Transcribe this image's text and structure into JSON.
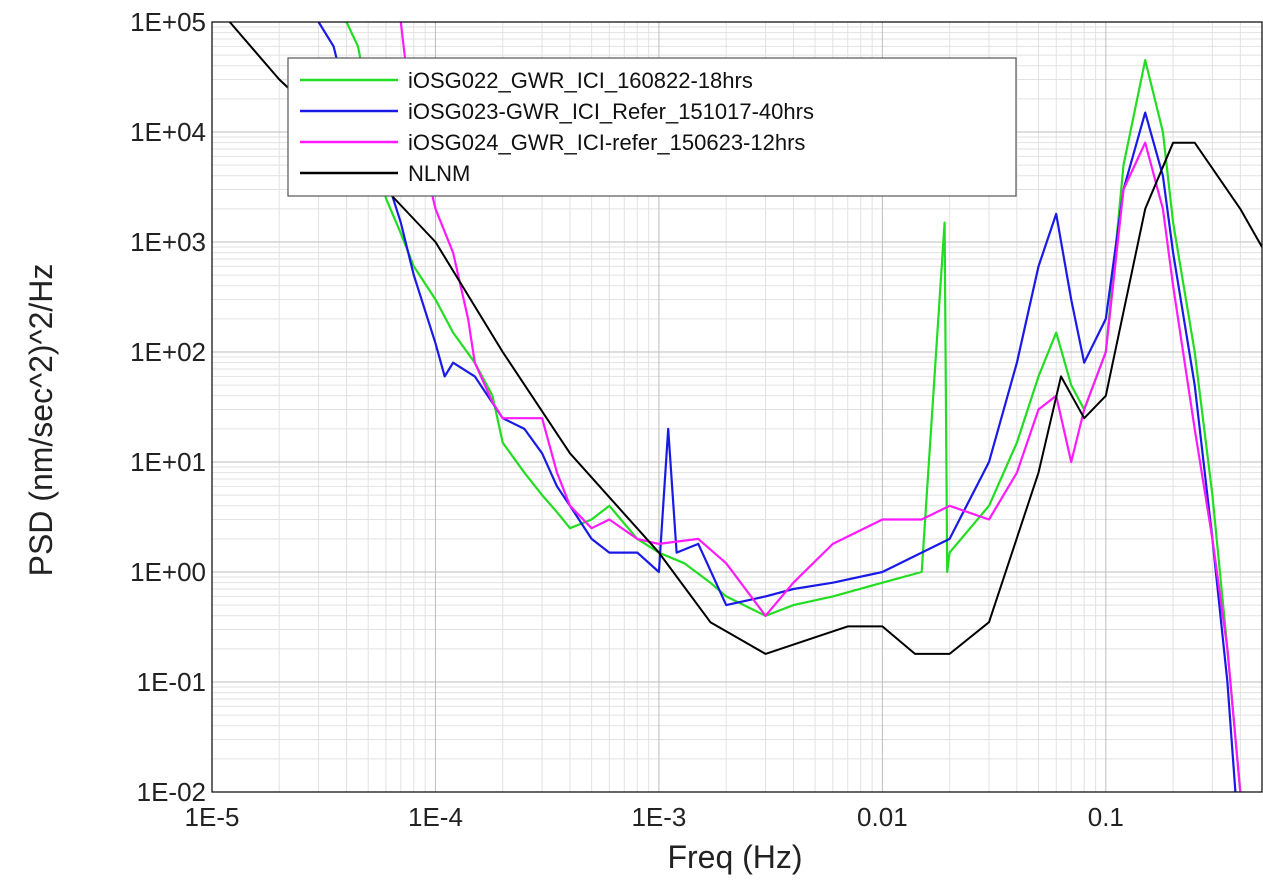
{
  "chart_data": {
    "type": "line",
    "title": "",
    "xlabel": "Freq (Hz)",
    "ylabel": "PSD (nm/sec^2)^2/Hz",
    "x_scale": "log",
    "y_scale": "log",
    "xlim": [
      1e-05,
      0.5
    ],
    "ylim": [
      0.01,
      100000
    ],
    "grid": true,
    "legend_position": "top-left",
    "x_ticks": [
      {
        "value": 1e-05,
        "label": "1E-5"
      },
      {
        "value": 0.0001,
        "label": "1E-4"
      },
      {
        "value": 0.001,
        "label": "1E-3"
      },
      {
        "value": 0.01,
        "label": "0.01"
      },
      {
        "value": 0.1,
        "label": "0.1"
      }
    ],
    "y_ticks": [
      {
        "value": 100000,
        "label": "1E+05"
      },
      {
        "value": 10000,
        "label": "1E+04"
      },
      {
        "value": 1000,
        "label": "1E+03"
      },
      {
        "value": 100,
        "label": "1E+02"
      },
      {
        "value": 10,
        "label": "1E+01"
      },
      {
        "value": 1,
        "label": "1E+00"
      },
      {
        "value": 0.1,
        "label": "1E-01"
      },
      {
        "value": 0.01,
        "label": "1E-02"
      }
    ],
    "series": [
      {
        "name": "iOSG022_GWR_ICI_160822-18hrs",
        "color": "#22dd22",
        "points": [
          [
            4e-05,
            100000
          ],
          [
            4.5e-05,
            60000
          ],
          [
            5e-05,
            20000
          ],
          [
            5.5e-05,
            8000
          ],
          [
            6e-05,
            2500
          ],
          [
            7e-05,
            1200
          ],
          [
            8e-05,
            600
          ],
          [
            0.0001,
            300
          ],
          [
            0.00012,
            150
          ],
          [
            0.00015,
            80
          ],
          [
            0.00018,
            40
          ],
          [
            0.0002,
            15
          ],
          [
            0.00025,
            8
          ],
          [
            0.0003,
            5
          ],
          [
            0.00035,
            3.5
          ],
          [
            0.0004,
            2.5
          ],
          [
            0.0005,
            3
          ],
          [
            0.0006,
            4
          ],
          [
            0.0008,
            2
          ],
          [
            0.001,
            1.5
          ],
          [
            0.0013,
            1.2
          ],
          [
            0.0017,
            0.8
          ],
          [
            0.002,
            0.6
          ],
          [
            0.003,
            0.4
          ],
          [
            0.004,
            0.5
          ],
          [
            0.006,
            0.6
          ],
          [
            0.01,
            0.8
          ],
          [
            0.015,
            1
          ],
          [
            0.019,
            1500
          ],
          [
            0.0195,
            1
          ],
          [
            0.02,
            1.5
          ],
          [
            0.03,
            4
          ],
          [
            0.04,
            15
          ],
          [
            0.05,
            60
          ],
          [
            0.06,
            150
          ],
          [
            0.07,
            50
          ],
          [
            0.08,
            30
          ],
          [
            0.1,
            100
          ],
          [
            0.12,
            5000
          ],
          [
            0.15,
            45000
          ],
          [
            0.18,
            10000
          ],
          [
            0.2,
            1500
          ],
          [
            0.25,
            100
          ],
          [
            0.3,
            5
          ],
          [
            0.35,
            0.2
          ],
          [
            0.4,
            0.01
          ]
        ]
      },
      {
        "name": "iOSG023-GWR_ICI_Refer_151017-40hrs",
        "color": "#1a1ae6",
        "points": [
          [
            3e-05,
            100000
          ],
          [
            3.5e-05,
            60000
          ],
          [
            4e-05,
            20000
          ],
          [
            5e-05,
            8000
          ],
          [
            6e-05,
            4000
          ],
          [
            7e-05,
            1500
          ],
          [
            8e-05,
            500
          ],
          [
            0.0001,
            120
          ],
          [
            0.00011,
            60
          ],
          [
            0.00012,
            80
          ],
          [
            0.00015,
            60
          ],
          [
            0.0002,
            25
          ],
          [
            0.00025,
            20
          ],
          [
            0.0003,
            12
          ],
          [
            0.00035,
            6
          ],
          [
            0.0004,
            4
          ],
          [
            0.0005,
            2
          ],
          [
            0.0006,
            1.5
          ],
          [
            0.0008,
            1.5
          ],
          [
            0.001,
            1
          ],
          [
            0.0011,
            20
          ],
          [
            0.0012,
            1.5
          ],
          [
            0.0015,
            1.8
          ],
          [
            0.002,
            0.5
          ],
          [
            0.003,
            0.6
          ],
          [
            0.004,
            0.7
          ],
          [
            0.006,
            0.8
          ],
          [
            0.01,
            1
          ],
          [
            0.015,
            1.5
          ],
          [
            0.02,
            2
          ],
          [
            0.03,
            10
          ],
          [
            0.04,
            80
          ],
          [
            0.05,
            600
          ],
          [
            0.06,
            1800
          ],
          [
            0.07,
            300
          ],
          [
            0.08,
            80
          ],
          [
            0.1,
            200
          ],
          [
            0.12,
            3000
          ],
          [
            0.15,
            15000
          ],
          [
            0.18,
            4000
          ],
          [
            0.2,
            800
          ],
          [
            0.25,
            50
          ],
          [
            0.3,
            2
          ],
          [
            0.35,
            0.1
          ],
          [
            0.38,
            0.01
          ]
        ]
      },
      {
        "name": "iOSG024_GWR_ICI-refer_150623-12hrs",
        "color": "#ff1aff",
        "points": [
          [
            7e-05,
            100000
          ],
          [
            7.5e-05,
            30000
          ],
          [
            8e-05,
            10000
          ],
          [
            9e-05,
            5000
          ],
          [
            0.0001,
            2000
          ],
          [
            0.00012,
            800
          ],
          [
            0.00014,
            200
          ],
          [
            0.00015,
            80
          ],
          [
            0.00018,
            35
          ],
          [
            0.0002,
            25
          ],
          [
            0.00025,
            25
          ],
          [
            0.0003,
            25
          ],
          [
            0.00035,
            8
          ],
          [
            0.0004,
            4
          ],
          [
            0.0005,
            2.5
          ],
          [
            0.0006,
            3
          ],
          [
            0.0008,
            2
          ],
          [
            0.001,
            1.8
          ],
          [
            0.0015,
            2
          ],
          [
            0.002,
            1.2
          ],
          [
            0.003,
            0.4
          ],
          [
            0.004,
            0.8
          ],
          [
            0.006,
            1.8
          ],
          [
            0.01,
            3
          ],
          [
            0.015,
            3
          ],
          [
            0.02,
            4
          ],
          [
            0.03,
            3
          ],
          [
            0.04,
            8
          ],
          [
            0.05,
            30
          ],
          [
            0.06,
            40
          ],
          [
            0.07,
            10
          ],
          [
            0.08,
            30
          ],
          [
            0.1,
            100
          ],
          [
            0.12,
            3000
          ],
          [
            0.15,
            8000
          ],
          [
            0.18,
            2000
          ],
          [
            0.2,
            400
          ],
          [
            0.25,
            20
          ],
          [
            0.3,
            2
          ],
          [
            0.35,
            0.2
          ],
          [
            0.4,
            0.01
          ]
        ]
      },
      {
        "name": "NLNM",
        "color": "#000000",
        "points": [
          [
            1.2e-05,
            100000
          ],
          [
            2e-05,
            30000
          ],
          [
            4e-05,
            8000
          ],
          [
            6e-05,
            3000
          ],
          [
            0.0001,
            1000
          ],
          [
            0.0002,
            100
          ],
          [
            0.0004,
            12
          ],
          [
            0.001,
            1.5
          ],
          [
            0.0017,
            0.35
          ],
          [
            0.003,
            0.18
          ],
          [
            0.007,
            0.32
          ],
          [
            0.01,
            0.32
          ],
          [
            0.014,
            0.18
          ],
          [
            0.02,
            0.18
          ],
          [
            0.03,
            0.35
          ],
          [
            0.05,
            8
          ],
          [
            0.063,
            60
          ],
          [
            0.08,
            25
          ],
          [
            0.1,
            40
          ],
          [
            0.15,
            2000
          ],
          [
            0.2,
            8000
          ],
          [
            0.25,
            8000
          ],
          [
            0.4,
            2000
          ],
          [
            0.5,
            900
          ]
        ]
      }
    ]
  }
}
